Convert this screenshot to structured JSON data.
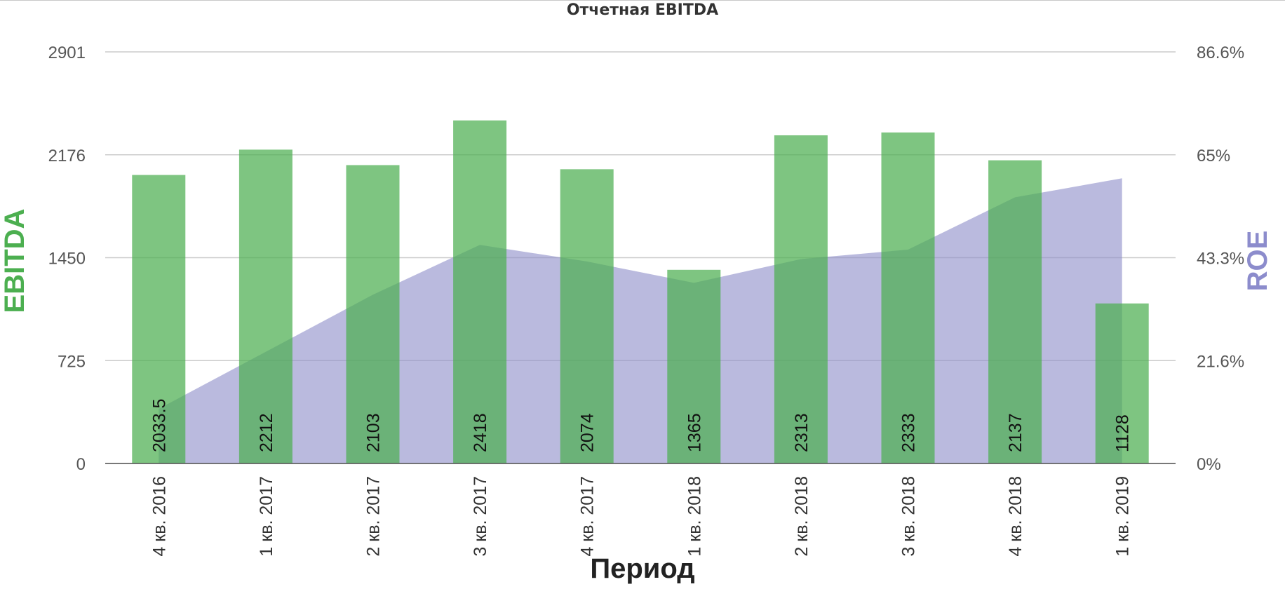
{
  "chart_data": {
    "type": "bar",
    "title": "Отчетная EBITDA",
    "xlabel": "Период",
    "ylabel": "EBITDA",
    "y2label": "ROE",
    "categories": [
      "4 кв. 2016",
      "1 кв. 2017",
      "2 кв. 2017",
      "3 кв. 2017",
      "4 кв. 2017",
      "1 кв. 2018",
      "2 кв. 2018",
      "3 кв. 2018",
      "4 кв. 2018",
      "1 кв. 2019"
    ],
    "series": [
      {
        "name": "EBITDA",
        "type": "bar",
        "axis": "left",
        "values": [
          2033.5,
          2212,
          2103,
          2418,
          2074,
          1365,
          2313,
          2333,
          2137,
          1128
        ],
        "data_labels": [
          "2033.5",
          "2212",
          "2103",
          "2418",
          "2074",
          "1365",
          "2313",
          "2333",
          "2137",
          "1128"
        ]
      },
      {
        "name": "ROE",
        "type": "area",
        "axis": "right",
        "values": [
          11.5,
          23.5,
          35.5,
          46.0,
          42.5,
          38.0,
          43.0,
          45.0,
          56.0,
          60.0
        ]
      }
    ],
    "ylim": [
      0,
      2901
    ],
    "yticks": [
      "0",
      "725",
      "1450",
      "2176",
      "2901"
    ],
    "y2lim": [
      0,
      86.6
    ],
    "y2ticks": [
      "0%",
      "21.6%",
      "43.3%",
      "65%",
      "86.6%"
    ],
    "grid": true,
    "legend": "none",
    "colors": {
      "bar": "#4caf50",
      "area": "#8c8cc8",
      "grid": "#cccccc",
      "left_title": "#4caf50",
      "right_title": "#8c8ccc"
    }
  }
}
